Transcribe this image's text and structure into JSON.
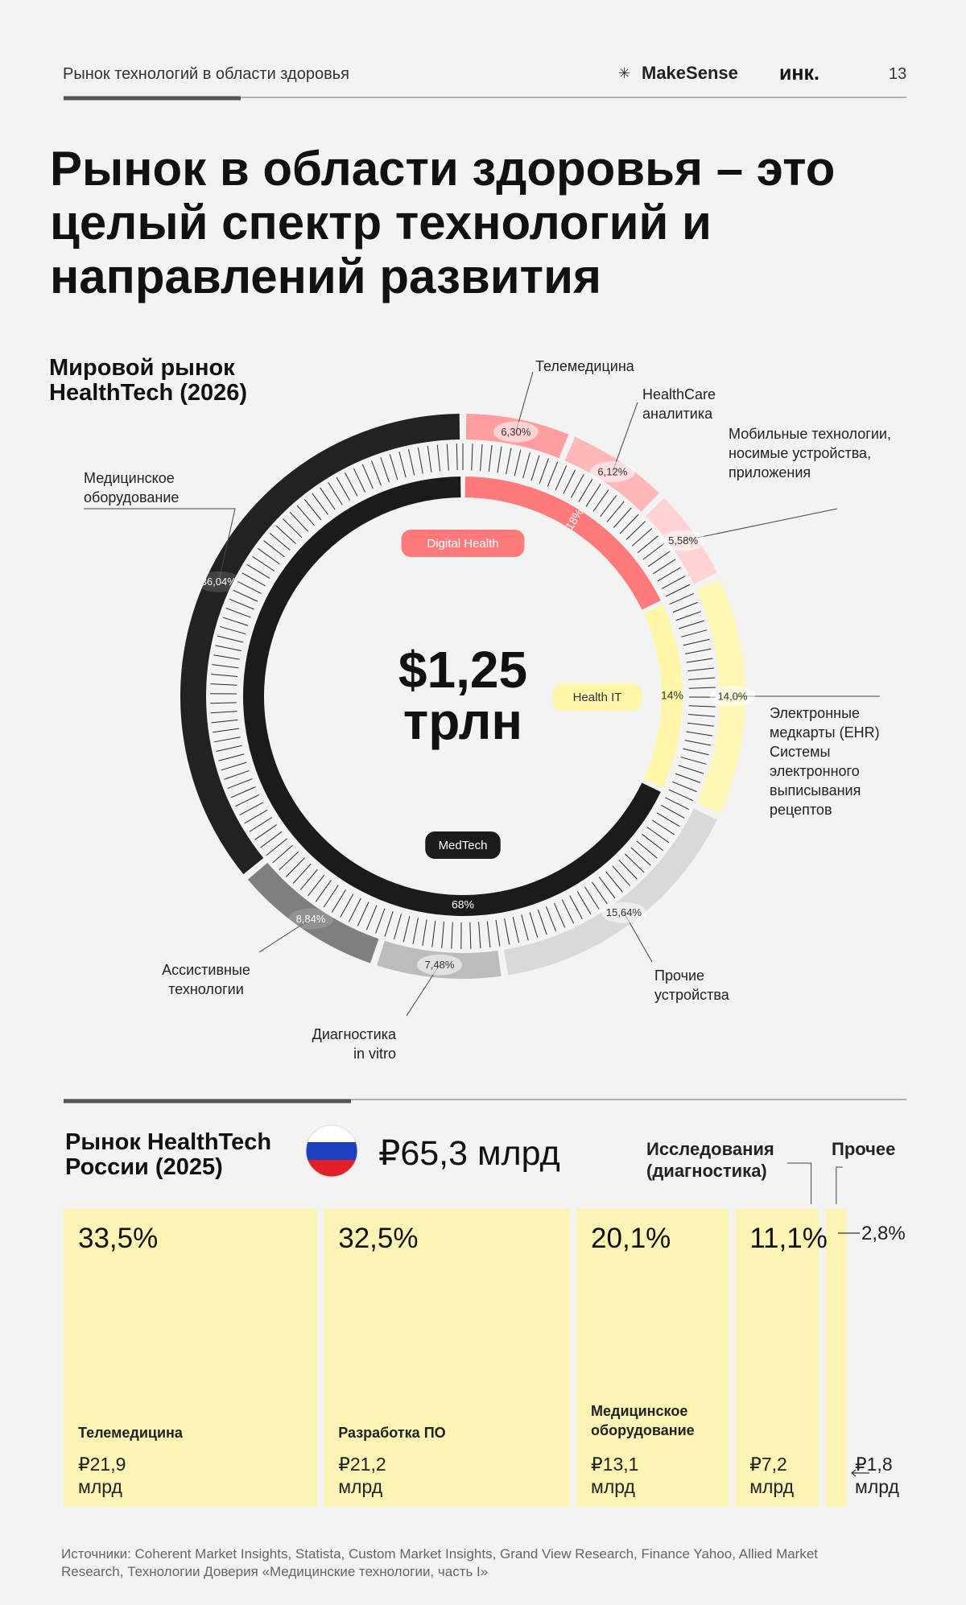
{
  "header": {
    "section": "Рынок технологий в области здоровья",
    "brand": "MakeSense",
    "partner": "инк.",
    "page": "13"
  },
  "title": "Рынок в области здоровья – это целый спектр технологий и направлений развития",
  "chart_data": [
    {
      "type": "donut",
      "title": "Мировой рынок HealthTech (2026)",
      "center_value": "$1,25",
      "center_unit": "трлн",
      "categories": [
        "Телемедицина",
        "HealthCare аналитика",
        "Мобильные технологии, носимые устройства, приложения",
        "Электронные медкарты (EHR) Системы электронного выписывания рецептов",
        "Прочие устройства",
        "Диагностика in vitro",
        "Ассистивные технологии",
        "Медицинское оборудование"
      ],
      "values": [
        6.3,
        6.12,
        5.58,
        14.0,
        15.64,
        7.48,
        8.84,
        36.04
      ],
      "value_labels": [
        "6,30%",
        "6,12%",
        "5,58%",
        "14,0%",
        "15,64%",
        "7,48%",
        "8,84%",
        "36,04%"
      ],
      "colors": [
        "#ff9e9e",
        "#ffb8b8",
        "#ffd3d3",
        "#fff7b5",
        "#d9d9d9",
        "#bcbcbc",
        "#7f7f7f",
        "#222222"
      ],
      "groups": {
        "categories": [
          "Digital Health",
          "Health IT",
          "MedTech"
        ],
        "values": [
          18,
          14,
          68
        ],
        "value_labels": [
          "18%",
          "14%",
          "68%"
        ],
        "colors": [
          "#ff7b7b",
          "#fff6a8",
          "#1b1b1b"
        ]
      }
    },
    {
      "type": "stacked-bar",
      "title": "Рынок HealthTech России (2025)",
      "total": "₽65,3 млрд",
      "categories": [
        "Телемедицина",
        "Разработка ПО",
        "Медицинское оборудование",
        "Исследования (диагностика)",
        "Прочее"
      ],
      "values": [
        33.5,
        32.5,
        20.1,
        11.1,
        2.8
      ],
      "value_labels": [
        "33,5%",
        "32,5%",
        "20,1%",
        "11,1%",
        "2,8%"
      ],
      "amounts": [
        21.9,
        21.2,
        13.1,
        7.2,
        1.8
      ],
      "amount_labels": [
        "₽21,9 млрд",
        "₽21,2 млрд",
        "₽13,1 млрд",
        "₽7,2 млрд",
        "₽1,8 млрд"
      ],
      "color": "#fbf4b4"
    }
  ],
  "sources": "Источники: Coherent Market Insights, Statista, Custom Market Insights, Grand View Research, Finance Yahoo, Allied Market Research, Технологии Доверия «Медицинские технологии, часть I»"
}
